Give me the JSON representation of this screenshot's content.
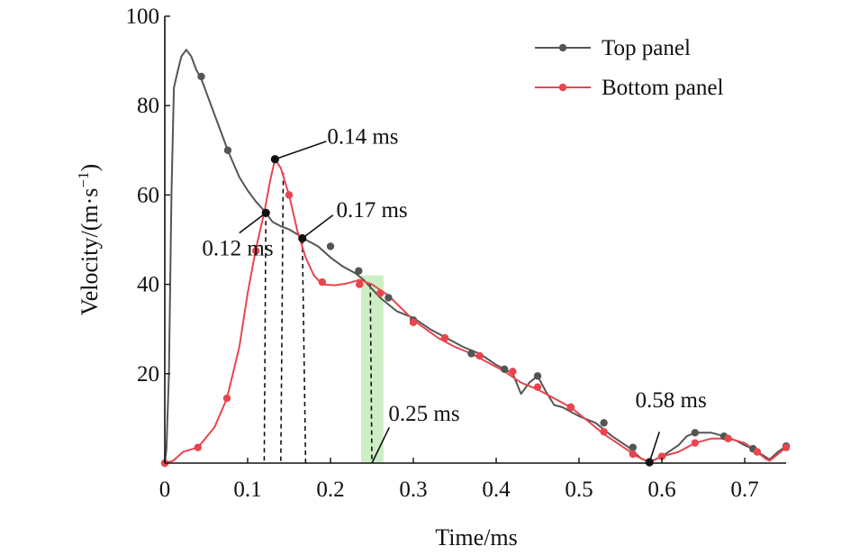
{
  "chart_data": {
    "type": "line",
    "xlabel": "Time/ms",
    "ylabel_main": "Velocity/(m·s",
    "ylabel_sup": "−1",
    "ylabel_close": ")",
    "xlim": [
      0,
      0.75
    ],
    "ylim": [
      0,
      100
    ],
    "x_ticks": [
      0,
      0.1,
      0.2,
      0.3,
      0.4,
      0.5,
      0.6,
      0.7
    ],
    "x_tick_labels": [
      "0",
      "0.1",
      "0.2",
      "0.3",
      "0.4",
      "0.5",
      "0.6",
      "0.7"
    ],
    "y_ticks": [
      20,
      40,
      60,
      80,
      100
    ],
    "y_tick_labels": [
      "20",
      "40",
      "60",
      "80",
      "100"
    ],
    "grid": false,
    "legend_position": "top-right",
    "series": [
      {
        "name": "Top panel",
        "color": "#555555",
        "line": [
          [
            0,
            0
          ],
          [
            0.002,
            3
          ],
          [
            0.005,
            20
          ],
          [
            0.008,
            60
          ],
          [
            0.011,
            84
          ],
          [
            0.016,
            88
          ],
          [
            0.02,
            91
          ],
          [
            0.026,
            92.5
          ],
          [
            0.032,
            91
          ],
          [
            0.038,
            88
          ],
          [
            0.044,
            86
          ],
          [
            0.05,
            83
          ],
          [
            0.06,
            78
          ],
          [
            0.07,
            73
          ],
          [
            0.076,
            70
          ],
          [
            0.09,
            64
          ],
          [
            0.1,
            61
          ],
          [
            0.11,
            58.5
          ],
          [
            0.115,
            57.5
          ],
          [
            0.122,
            56
          ],
          [
            0.13,
            54
          ],
          [
            0.14,
            53
          ],
          [
            0.15,
            52.3
          ],
          [
            0.16,
            51.2
          ],
          [
            0.165,
            50.5
          ],
          [
            0.17,
            50
          ],
          [
            0.185,
            48.5
          ],
          [
            0.2,
            46
          ],
          [
            0.215,
            44
          ],
          [
            0.23,
            42.5
          ],
          [
            0.24,
            41
          ],
          [
            0.25,
            39
          ],
          [
            0.26,
            37
          ],
          [
            0.28,
            34
          ],
          [
            0.3,
            32.5
          ],
          [
            0.32,
            30
          ],
          [
            0.34,
            28
          ],
          [
            0.36,
            26
          ],
          [
            0.38,
            24.5
          ],
          [
            0.4,
            22
          ],
          [
            0.41,
            21
          ],
          [
            0.42,
            20
          ],
          [
            0.43,
            15.5
          ],
          [
            0.44,
            18
          ],
          [
            0.45,
            19.5
          ],
          [
            0.46,
            16
          ],
          [
            0.47,
            13
          ],
          [
            0.48,
            12.5
          ],
          [
            0.5,
            10.5
          ],
          [
            0.52,
            9
          ],
          [
            0.54,
            6
          ],
          [
            0.56,
            3.5
          ],
          [
            0.575,
            1
          ],
          [
            0.585,
            0.2
          ],
          [
            0.6,
            1.5
          ],
          [
            0.62,
            4
          ],
          [
            0.63,
            6
          ],
          [
            0.64,
            6.8
          ],
          [
            0.66,
            6.8
          ],
          [
            0.675,
            6
          ],
          [
            0.69,
            5
          ],
          [
            0.7,
            4
          ],
          [
            0.71,
            3.2
          ],
          [
            0.72,
            2
          ],
          [
            0.73,
            0.8
          ],
          [
            0.74,
            2.5
          ],
          [
            0.75,
            3.8
          ]
        ],
        "markers": [
          [
            0,
            0
          ],
          [
            0.044,
            86.5
          ],
          [
            0.076,
            70
          ],
          [
            0.122,
            56
          ],
          [
            0.133,
            68
          ],
          [
            0.166,
            50.3
          ],
          [
            0.2,
            48.5
          ],
          [
            0.234,
            43
          ],
          [
            0.27,
            37
          ],
          [
            0.3,
            32
          ],
          [
            0.338,
            28
          ],
          [
            0.37,
            24.5
          ],
          [
            0.41,
            21
          ],
          [
            0.45,
            19.5
          ],
          [
            0.49,
            12.5
          ],
          [
            0.53,
            9
          ],
          [
            0.565,
            3.5
          ],
          [
            0.585,
            0.2
          ],
          [
            0.64,
            6.8
          ],
          [
            0.675,
            6
          ],
          [
            0.71,
            3.2
          ],
          [
            0.75,
            3.8
          ]
        ]
      },
      {
        "name": "Bottom panel",
        "color": "#e8454f",
        "line": [
          [
            0,
            0
          ],
          [
            0.01,
            0.5
          ],
          [
            0.022,
            2.5
          ],
          [
            0.04,
            3.5
          ],
          [
            0.06,
            8
          ],
          [
            0.075,
            14.5
          ],
          [
            0.09,
            26
          ],
          [
            0.1,
            38
          ],
          [
            0.11,
            48
          ],
          [
            0.12,
            56
          ],
          [
            0.127,
            63
          ],
          [
            0.133,
            68
          ],
          [
            0.14,
            66
          ],
          [
            0.15,
            60
          ],
          [
            0.16,
            52
          ],
          [
            0.17,
            46
          ],
          [
            0.18,
            42
          ],
          [
            0.19,
            40
          ],
          [
            0.205,
            39.8
          ],
          [
            0.22,
            40.2
          ],
          [
            0.235,
            41
          ],
          [
            0.25,
            40
          ],
          [
            0.27,
            37.5
          ],
          [
            0.3,
            32
          ],
          [
            0.33,
            28
          ],
          [
            0.35,
            26
          ],
          [
            0.37,
            24.5
          ],
          [
            0.39,
            22.5
          ],
          [
            0.41,
            20.5
          ],
          [
            0.43,
            18
          ],
          [
            0.45,
            16.5
          ],
          [
            0.47,
            14.5
          ],
          [
            0.49,
            12.5
          ],
          [
            0.51,
            9.5
          ],
          [
            0.53,
            6.5
          ],
          [
            0.55,
            4
          ],
          [
            0.57,
            1.5
          ],
          [
            0.585,
            0.2
          ],
          [
            0.6,
            1.5
          ],
          [
            0.62,
            2.5
          ],
          [
            0.64,
            4.5
          ],
          [
            0.66,
            5.5
          ],
          [
            0.68,
            5.5
          ],
          [
            0.7,
            4.5
          ],
          [
            0.715,
            2.5
          ],
          [
            0.725,
            1
          ],
          [
            0.73,
            0.5
          ],
          [
            0.74,
            2
          ],
          [
            0.75,
            3.5
          ]
        ],
        "markers": [
          [
            0,
            0
          ],
          [
            0.04,
            3.5
          ],
          [
            0.075,
            14.5
          ],
          [
            0.11,
            47.5
          ],
          [
            0.133,
            68
          ],
          [
            0.15,
            60
          ],
          [
            0.19,
            40.5
          ],
          [
            0.235,
            40
          ],
          [
            0.26,
            38
          ],
          [
            0.3,
            31.5
          ],
          [
            0.338,
            28
          ],
          [
            0.38,
            24
          ],
          [
            0.42,
            20.5
          ],
          [
            0.45,
            17
          ],
          [
            0.49,
            12.5
          ],
          [
            0.53,
            7
          ],
          [
            0.565,
            2
          ],
          [
            0.6,
            1.5
          ],
          [
            0.64,
            4.5
          ],
          [
            0.68,
            5.5
          ],
          [
            0.715,
            2.5
          ],
          [
            0.75,
            3.5
          ]
        ]
      }
    ],
    "key_points": [
      [
        0.122,
        56
      ],
      [
        0.133,
        68
      ],
      [
        0.166,
        50.3
      ],
      [
        0.585,
        0.2
      ]
    ],
    "dashed_lines": [
      {
        "top": [
          0.122,
          56
        ],
        "bottom": [
          0.12,
          0
        ]
      },
      {
        "top": [
          0.143,
          65
        ],
        "bottom": [
          0.14,
          0
        ]
      },
      {
        "top": [
          0.166,
          50
        ],
        "bottom": [
          0.17,
          0
        ]
      },
      {
        "top": [
          0.248,
          40
        ],
        "bottom": [
          0.25,
          0
        ]
      }
    ],
    "highlight_band": {
      "x0": 0.237,
      "x1": 0.264,
      "y0": 0,
      "y1": 42,
      "color": "#cdeec4"
    },
    "annotations": [
      {
        "text": "0.14 ms",
        "point": [
          0.133,
          68
        ],
        "text_at": [
          0.196,
          71.5
        ],
        "anchor": "start",
        "leader_to": [
          0.195,
          72
        ]
      },
      {
        "text": "0.17 ms",
        "point": [
          0.166,
          50.3
        ],
        "text_at": [
          0.207,
          55
        ],
        "anchor": "start",
        "leader_to": [
          0.203,
          55.5
        ]
      },
      {
        "text": "0.12 ms",
        "point": [
          0.122,
          56
        ],
        "text_at": [
          0.045,
          46.5
        ],
        "anchor": "start",
        "leader_to": [
          0.09,
          51.5
        ]
      },
      {
        "text": "0.25 ms",
        "point": [
          0.25,
          0
        ],
        "text_at": [
          0.27,
          9.5
        ],
        "anchor": "start",
        "leader_to": [
          0.271,
          8
        ]
      },
      {
        "text": "0.58 ms",
        "point": [
          0.585,
          0.2
        ],
        "text_at": [
          0.568,
          12.5
        ],
        "anchor": "start",
        "leader_to": [
          0.597,
          7
        ]
      }
    ]
  }
}
